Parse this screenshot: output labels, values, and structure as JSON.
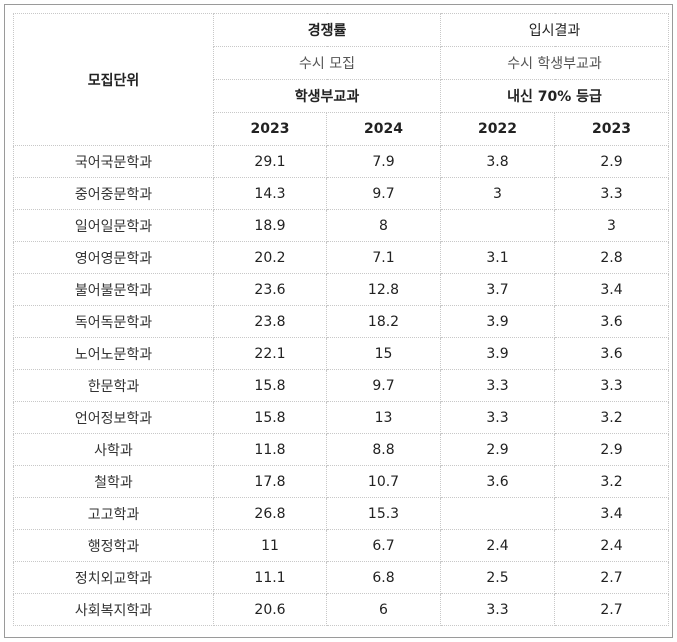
{
  "header": {
    "unit": "모집단위",
    "competition": "경쟁률",
    "admission_result": "입시결과",
    "competition_sub": "수시 모집",
    "result_sub": "수시 학생부교과",
    "competition_type": "학생부교과",
    "result_type": "내신 70% 등급",
    "years": [
      "2023",
      "2024",
      "2022",
      "2023"
    ]
  },
  "rows": [
    {
      "unit": "국어국문학과",
      "c2023": "29.1",
      "c2024": "7.9",
      "r2022": "3.8",
      "r2023": "2.9"
    },
    {
      "unit": "중어중문학과",
      "c2023": "14.3",
      "c2024": "9.7",
      "r2022": "3",
      "r2023": "3.3"
    },
    {
      "unit": "일어일문학과",
      "c2023": "18.9",
      "c2024": "8",
      "r2022": "",
      "r2023": "3"
    },
    {
      "unit": "영어영문학과",
      "c2023": "20.2",
      "c2024": "7.1",
      "r2022": "3.1",
      "r2023": "2.8"
    },
    {
      "unit": "불어불문학과",
      "c2023": "23.6",
      "c2024": "12.8",
      "r2022": "3.7",
      "r2023": "3.4"
    },
    {
      "unit": "독어독문학과",
      "c2023": "23.8",
      "c2024": "18.2",
      "r2022": "3.9",
      "r2023": "3.6"
    },
    {
      "unit": "노어노문학과",
      "c2023": "22.1",
      "c2024": "15",
      "r2022": "3.9",
      "r2023": "3.6"
    },
    {
      "unit": "한문학과",
      "c2023": "15.8",
      "c2024": "9.7",
      "r2022": "3.3",
      "r2023": "3.3"
    },
    {
      "unit": "언어정보학과",
      "c2023": "15.8",
      "c2024": "13",
      "r2022": "3.3",
      "r2023": "3.2"
    },
    {
      "unit": "사학과",
      "c2023": "11.8",
      "c2024": "8.8",
      "r2022": "2.9",
      "r2023": "2.9"
    },
    {
      "unit": "철학과",
      "c2023": "17.8",
      "c2024": "10.7",
      "r2022": "3.6",
      "r2023": "3.2"
    },
    {
      "unit": "고고학과",
      "c2023": "26.8",
      "c2024": "15.3",
      "r2022": "",
      "r2023": "3.4"
    },
    {
      "unit": "행정학과",
      "c2023": "11",
      "c2024": "6.7",
      "r2022": "2.4",
      "r2023": "2.4"
    },
    {
      "unit": "정치외교학과",
      "c2023": "11.1",
      "c2024": "6.8",
      "r2022": "2.5",
      "r2023": "2.7"
    },
    {
      "unit": "사회복지학과",
      "c2023": "20.6",
      "c2024": "6",
      "r2022": "3.3",
      "r2023": "2.7"
    }
  ]
}
